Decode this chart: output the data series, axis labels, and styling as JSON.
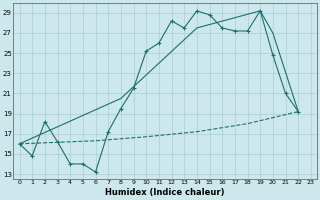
{
  "xlabel": "Humidex (Indice chaleur)",
  "xlim": [
    -0.5,
    23.5
  ],
  "ylim": [
    12.5,
    30.0
  ],
  "yticks": [
    13,
    15,
    17,
    19,
    21,
    23,
    25,
    27,
    29
  ],
  "xticks": [
    0,
    1,
    2,
    3,
    4,
    5,
    6,
    7,
    8,
    9,
    10,
    11,
    12,
    13,
    14,
    15,
    16,
    17,
    18,
    19,
    20,
    21,
    22,
    23
  ],
  "bg_color": "#cce8ec",
  "grid_color": "#a8cfd6",
  "line_color": "#1e6e6e",
  "line1_x": [
    0,
    1,
    2,
    3,
    4,
    5,
    6,
    7,
    8,
    9,
    10,
    11,
    12,
    13,
    14,
    15,
    16,
    17,
    18,
    19,
    20,
    21,
    22
  ],
  "line1_y": [
    16.0,
    14.8,
    18.2,
    16.2,
    14.0,
    14.0,
    13.2,
    17.2,
    19.5,
    21.5,
    25.2,
    26.0,
    28.2,
    27.5,
    29.2,
    28.8,
    27.5,
    27.2,
    27.2,
    29.2,
    24.8,
    21.0,
    19.2
  ],
  "line2_x": [
    0,
    6,
    10,
    14,
    18,
    22
  ],
  "line2_y": [
    16.0,
    16.3,
    16.7,
    17.2,
    18.0,
    19.2
  ],
  "line3_x": [
    0,
    8,
    14,
    19,
    20,
    22
  ],
  "line3_y": [
    16.0,
    20.5,
    27.5,
    29.2,
    27.0,
    19.2
  ]
}
